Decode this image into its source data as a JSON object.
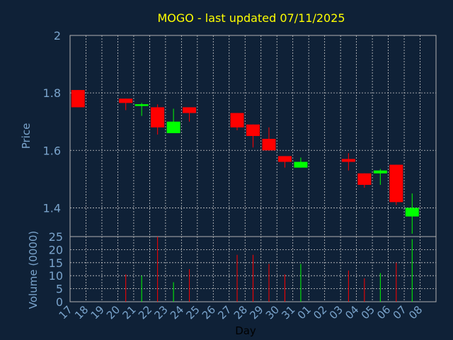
{
  "chart_data": {
    "type": "candlestick",
    "title": "MOGO - last updated 07/11/2025",
    "price_panel": {
      "ylabel": "Price",
      "ylim": [
        1.3,
        2.0
      ],
      "yticks": [
        "1.4",
        "1.6",
        "1.8",
        "2"
      ],
      "ytick_values": [
        1.4,
        1.6,
        1.8,
        2.0
      ],
      "grid": true
    },
    "volume_panel": {
      "ylabel": "Volume (0000)",
      "ylim": [
        0,
        25
      ],
      "yticks": [
        "0",
        "5",
        "10",
        "15",
        "20",
        "25"
      ],
      "ytick_values": [
        0,
        5,
        10,
        15,
        20,
        25
      ],
      "grid": true
    },
    "xlabel": "Day",
    "x_ticks": [
      "17",
      "18",
      "19",
      "20",
      "21",
      "22",
      "23",
      "24",
      "25",
      "26",
      "27",
      "28",
      "29",
      "30",
      "31",
      "01",
      "02",
      "03",
      "04",
      "05",
      "06",
      "07",
      "08"
    ],
    "candles": [
      {
        "day": "17",
        "open": 1.81,
        "high": 1.81,
        "low": 1.75,
        "close": 1.75,
        "volume": 0
      },
      {
        "day": "20",
        "open": 1.78,
        "high": 1.78,
        "low": 1.74,
        "close": 1.765,
        "volume": 10.5
      },
      {
        "day": "21",
        "open": 1.755,
        "high": 1.765,
        "low": 1.72,
        "close": 1.76,
        "volume": 10
      },
      {
        "day": "22",
        "open": 1.75,
        "high": 1.76,
        "low": 1.655,
        "close": 1.68,
        "volume": 25
      },
      {
        "day": "23",
        "open": 1.66,
        "high": 1.745,
        "low": 1.66,
        "close": 1.7,
        "volume": 7.5
      },
      {
        "day": "24",
        "open": 1.75,
        "high": 1.75,
        "low": 1.7,
        "close": 1.73,
        "volume": 12.5
      },
      {
        "day": "27",
        "open": 1.73,
        "high": 1.73,
        "low": 1.67,
        "close": 1.68,
        "volume": 18
      },
      {
        "day": "28",
        "open": 1.69,
        "high": 1.69,
        "low": 1.61,
        "close": 1.65,
        "volume": 18
      },
      {
        "day": "29",
        "open": 1.64,
        "high": 1.68,
        "low": 1.6,
        "close": 1.6,
        "volume": 14.5
      },
      {
        "day": "30",
        "open": 1.58,
        "high": 1.58,
        "low": 1.54,
        "close": 1.56,
        "volume": 10.5
      },
      {
        "day": "31",
        "open": 1.54,
        "high": 1.575,
        "low": 1.54,
        "close": 1.56,
        "volume": 14.5
      },
      {
        "day": "03",
        "open": 1.57,
        "high": 1.59,
        "low": 1.53,
        "close": 1.56,
        "volume": 12
      },
      {
        "day": "04",
        "open": 1.52,
        "high": 1.52,
        "low": 1.47,
        "close": 1.48,
        "volume": 9
      },
      {
        "day": "05",
        "open": 1.52,
        "high": 1.535,
        "low": 1.48,
        "close": 1.53,
        "volume": 11
      },
      {
        "day": "06",
        "open": 1.55,
        "high": 1.55,
        "low": 1.41,
        "close": 1.42,
        "volume": 15
      },
      {
        "day": "07",
        "open": 1.37,
        "high": 1.45,
        "low": 1.31,
        "close": 1.4,
        "volume": 24
      }
    ],
    "colors": {
      "background": "#0f2137",
      "grid": "#c8c8c8",
      "axis": "#b0b0b0",
      "title": "#ffff00",
      "label": "#7aa4cc",
      "up": "#00ff00",
      "down": "#ff0000"
    }
  }
}
